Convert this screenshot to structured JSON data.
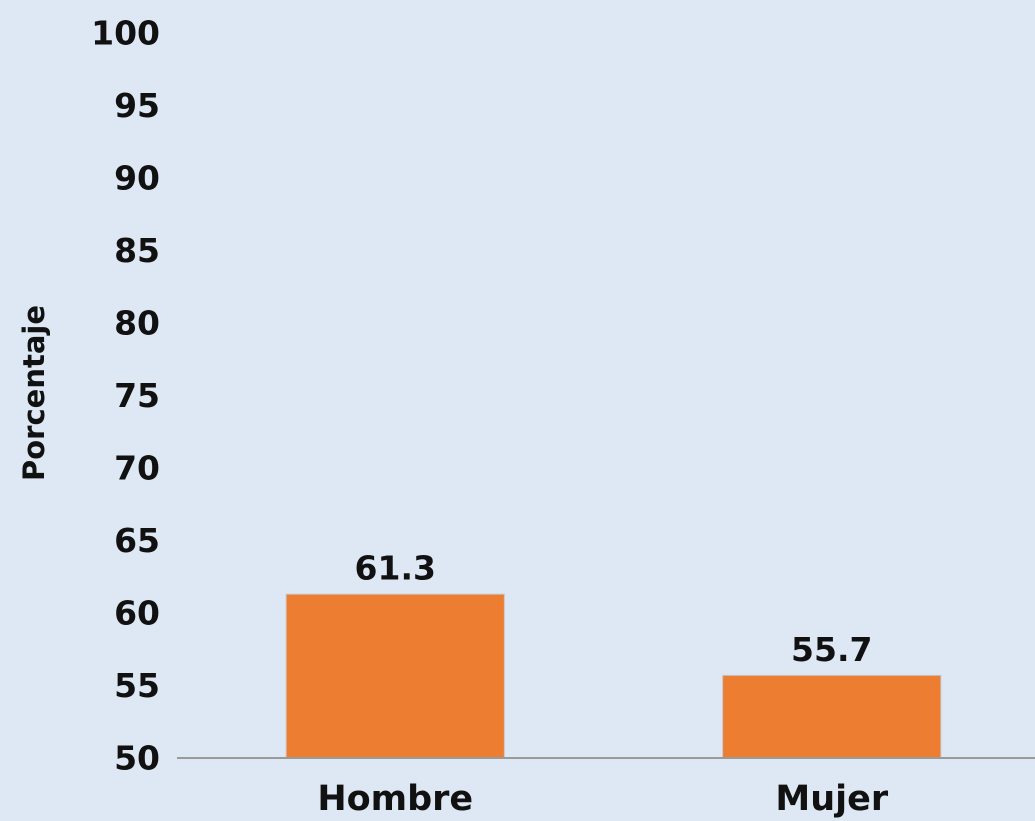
{
  "chart_data": {
    "type": "bar",
    "y_label": "Porcentaje",
    "categories": [
      "Hombre",
      "Mujer"
    ],
    "values": [
      61.3,
      55.7
    ],
    "color": "#ed7d31",
    "ylim": [
      50,
      100
    ],
    "yticks": [
      50,
      55,
      60,
      65,
      70,
      75,
      80,
      85,
      90,
      95,
      100
    ],
    "grid": false
  }
}
